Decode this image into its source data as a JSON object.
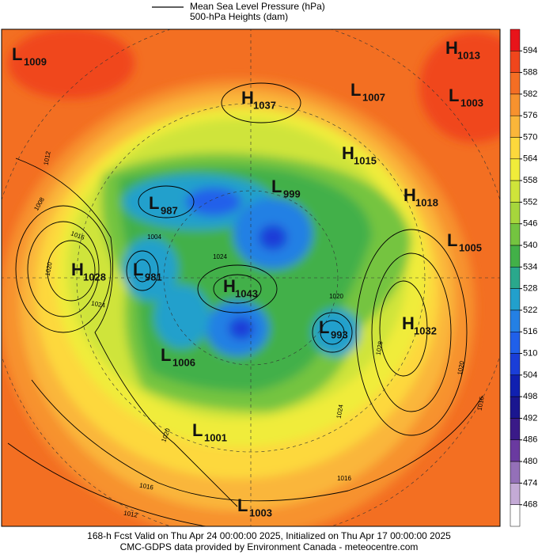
{
  "legend": {
    "line_label": "Mean Sea Level Pressure (hPa)",
    "fill_label": "500-hPa Heights (dam)"
  },
  "colorbar": {
    "labels": [
      594,
      588,
      582,
      576,
      570,
      564,
      558,
      552,
      546,
      540,
      534,
      528,
      522,
      516,
      510,
      504,
      498,
      492,
      486,
      480,
      474,
      468
    ],
    "colors": [
      "#e8141a",
      "#f0461c",
      "#f46e24",
      "#f7922e",
      "#fab63a",
      "#fdd83c",
      "#f0ec3a",
      "#cfe43a",
      "#a6d63c",
      "#74c440",
      "#42b048",
      "#2aa88c",
      "#22a0cc",
      "#2480e4",
      "#2060ea",
      "#1a3ed8",
      "#1020b0",
      "#1a1690",
      "#3a1a88",
      "#6a3aa0",
      "#9470b8",
      "#c4aad6",
      "#ffffff"
    ]
  },
  "systems": [
    {
      "letter": "L",
      "value": 1009
    },
    {
      "letter": "H",
      "value": 1013
    },
    {
      "letter": "L",
      "value": 1007
    },
    {
      "letter": "H",
      "value": 1037
    },
    {
      "letter": "L",
      "value": 1003
    },
    {
      "letter": "H",
      "value": 1015
    },
    {
      "letter": "L",
      "value": 999
    },
    {
      "letter": "H",
      "value": 1018
    },
    {
      "letter": "L",
      "value": 987
    },
    {
      "letter": "L",
      "value": 1005
    },
    {
      "letter": "H",
      "value": 1028
    },
    {
      "letter": "L",
      "value": 981
    },
    {
      "letter": "H",
      "value": 1043
    },
    {
      "letter": "L",
      "value": 993
    },
    {
      "letter": "H",
      "value": 1032
    },
    {
      "letter": "L",
      "value": 1006
    },
    {
      "letter": "L",
      "value": 1001
    },
    {
      "letter": "L",
      "value": 1003
    }
  ],
  "contour_labels": [
    1012,
    1008,
    1016,
    1020,
    1024,
    1004,
    1024,
    1020,
    1028,
    1024,
    1020,
    1016,
    1020,
    1016,
    1012,
    1016
  ],
  "footer": {
    "line1": "168-h Fcst Valid on Thu Apr 24 00:00:00 2025, Initialized on Thu Apr 17 00:00:00 2025",
    "line2": "CMC-GDPS data provided by Environment Canada - meteocentre.com"
  }
}
